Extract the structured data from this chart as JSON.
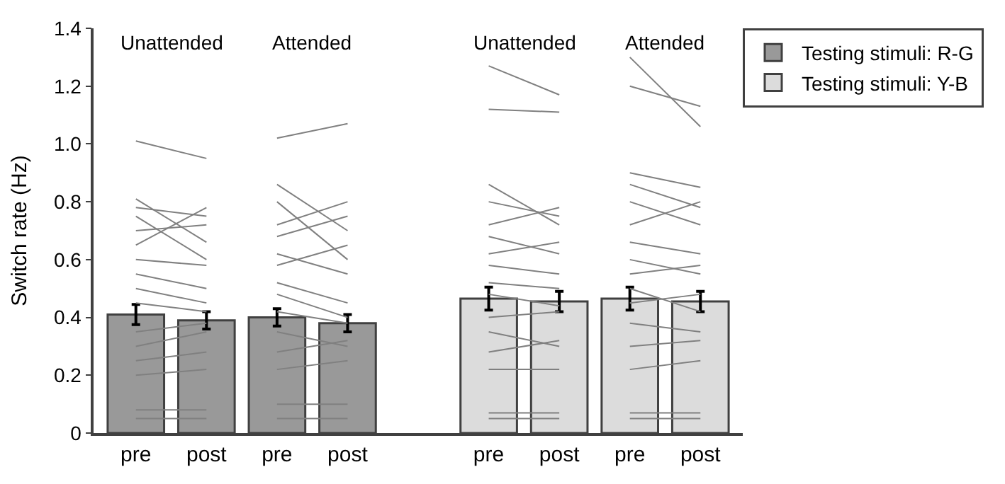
{
  "chart_data": {
    "type": "bar",
    "ylabel": "Switch rate (Hz)",
    "categories": [
      "pre",
      "post",
      "pre",
      "post",
      null,
      "pre",
      "post",
      "pre",
      "post"
    ],
    "ylim": [
      0,
      1.4
    ],
    "yticks": [
      0,
      0.2,
      0.4,
      0.6,
      0.8,
      {
        "value": 1.0,
        "label": "1.0"
      },
      1.2,
      1.4
    ],
    "legend": "top right",
    "annotations": [
      "Unattended",
      "Attended",
      "Unattended",
      "Attended"
    ],
    "series": [
      {
        "name": "Testing stimuli: R-G",
        "color": "#999999",
        "values": [
          0.41,
          0.39,
          0.4,
          0.38,
          null,
          null,
          null,
          null,
          null
        ],
        "errors": [
          0.035,
          0.03,
          0.03,
          0.03,
          null,
          null,
          null,
          null,
          null
        ]
      },
      {
        "name": "Testing stimuli: Y-B",
        "color": "#dcdcdc",
        "values": [
          null,
          null,
          null,
          null,
          null,
          0.465,
          0.455,
          0.465,
          0.455
        ],
        "errors": [
          null,
          null,
          null,
          null,
          null,
          0.04,
          0.035,
          0.04,
          0.035
        ]
      },
      {
        "type": "line",
        "color": "#808080",
        "values": [
          1.01,
          0.95,
          null,
          null,
          null,
          null,
          null,
          null,
          null
        ]
      },
      {
        "type": "line",
        "color": "#808080",
        "values": [
          0.81,
          0.66,
          null,
          null,
          null,
          null,
          null,
          null,
          null
        ]
      },
      {
        "type": "line",
        "color": "#808080",
        "values": [
          0.78,
          0.75,
          null,
          null,
          null,
          null,
          null,
          null,
          null
        ]
      },
      {
        "type": "line",
        "color": "#808080",
        "values": [
          0.75,
          0.6,
          null,
          null,
          null,
          null,
          null,
          null,
          null
        ]
      },
      {
        "type": "line",
        "color": "#808080",
        "values": [
          0.7,
          0.72,
          null,
          null,
          null,
          null,
          null,
          null,
          null
        ]
      },
      {
        "type": "line",
        "color": "#808080",
        "values": [
          0.65,
          0.78,
          null,
          null,
          null,
          null,
          null,
          null,
          null
        ]
      },
      {
        "type": "line",
        "color": "#808080",
        "values": [
          0.6,
          0.58,
          null,
          null,
          null,
          null,
          null,
          null,
          null
        ]
      },
      {
        "type": "line",
        "color": "#808080",
        "values": [
          0.55,
          0.5,
          null,
          null,
          null,
          null,
          null,
          null,
          null
        ]
      },
      {
        "type": "line",
        "color": "#808080",
        "values": [
          0.5,
          0.45,
          null,
          null,
          null,
          null,
          null,
          null,
          null
        ]
      },
      {
        "type": "line",
        "color": "#808080",
        "values": [
          0.45,
          0.42,
          null,
          null,
          null,
          null,
          null,
          null,
          null
        ]
      },
      {
        "type": "line",
        "color": "#808080",
        "values": [
          0.35,
          0.38,
          null,
          null,
          null,
          null,
          null,
          null,
          null
        ]
      },
      {
        "type": "line",
        "color": "#808080",
        "values": [
          0.3,
          0.35,
          null,
          null,
          null,
          null,
          null,
          null,
          null
        ]
      },
      {
        "type": "line",
        "color": "#808080",
        "values": [
          0.25,
          0.28,
          null,
          null,
          null,
          null,
          null,
          null,
          null
        ]
      },
      {
        "type": "line",
        "color": "#808080",
        "values": [
          0.2,
          0.22,
          null,
          null,
          null,
          null,
          null,
          null,
          null
        ]
      },
      {
        "type": "line",
        "color": "#808080",
        "values": [
          0.08,
          0.08,
          null,
          null,
          null,
          null,
          null,
          null,
          null
        ]
      },
      {
        "type": "line",
        "color": "#808080",
        "values": [
          0.05,
          0.05,
          null,
          null,
          null,
          null,
          null,
          null,
          null
        ]
      },
      {
        "type": "line",
        "color": "#808080",
        "values": [
          null,
          null,
          1.02,
          1.07,
          null,
          null,
          null,
          null,
          null
        ]
      },
      {
        "type": "line",
        "color": "#808080",
        "values": [
          null,
          null,
          0.86,
          0.7,
          null,
          null,
          null,
          null,
          null
        ]
      },
      {
        "type": "line",
        "color": "#808080",
        "values": [
          null,
          null,
          0.8,
          0.6,
          null,
          null,
          null,
          null,
          null
        ]
      },
      {
        "type": "line",
        "color": "#808080",
        "values": [
          null,
          null,
          0.72,
          0.8,
          null,
          null,
          null,
          null,
          null
        ]
      },
      {
        "type": "line",
        "color": "#808080",
        "values": [
          null,
          null,
          0.68,
          0.75,
          null,
          null,
          null,
          null,
          null
        ]
      },
      {
        "type": "line",
        "color": "#808080",
        "values": [
          null,
          null,
          0.62,
          0.55,
          null,
          null,
          null,
          null,
          null
        ]
      },
      {
        "type": "line",
        "color": "#808080",
        "values": [
          null,
          null,
          0.58,
          0.65,
          null,
          null,
          null,
          null,
          null
        ]
      },
      {
        "type": "line",
        "color": "#808080",
        "values": [
          null,
          null,
          0.52,
          0.45,
          null,
          null,
          null,
          null,
          null
        ]
      },
      {
        "type": "line",
        "color": "#808080",
        "values": [
          null,
          null,
          0.48,
          0.4,
          null,
          null,
          null,
          null,
          null
        ]
      },
      {
        "type": "line",
        "color": "#808080",
        "values": [
          null,
          null,
          0.42,
          0.38,
          null,
          null,
          null,
          null,
          null
        ]
      },
      {
        "type": "line",
        "color": "#808080",
        "values": [
          null,
          null,
          0.35,
          0.3,
          null,
          null,
          null,
          null,
          null
        ]
      },
      {
        "type": "line",
        "color": "#808080",
        "values": [
          null,
          null,
          0.28,
          0.32,
          null,
          null,
          null,
          null,
          null
        ]
      },
      {
        "type": "line",
        "color": "#808080",
        "values": [
          null,
          null,
          0.22,
          0.25,
          null,
          null,
          null,
          null,
          null
        ]
      },
      {
        "type": "line",
        "color": "#808080",
        "values": [
          null,
          null,
          0.1,
          0.1,
          null,
          null,
          null,
          null,
          null
        ]
      },
      {
        "type": "line",
        "color": "#808080",
        "values": [
          null,
          null,
          0.05,
          0.05,
          null,
          null,
          null,
          null,
          null
        ]
      },
      {
        "type": "line",
        "color": "#808080",
        "values": [
          null,
          null,
          null,
          null,
          null,
          1.27,
          1.17,
          null,
          null
        ]
      },
      {
        "type": "line",
        "color": "#808080",
        "values": [
          null,
          null,
          null,
          null,
          null,
          1.12,
          1.11,
          null,
          null
        ]
      },
      {
        "type": "line",
        "color": "#808080",
        "values": [
          null,
          null,
          null,
          null,
          null,
          0.86,
          0.72,
          null,
          null
        ]
      },
      {
        "type": "line",
        "color": "#808080",
        "values": [
          null,
          null,
          null,
          null,
          null,
          0.8,
          0.75,
          null,
          null
        ]
      },
      {
        "type": "line",
        "color": "#808080",
        "values": [
          null,
          null,
          null,
          null,
          null,
          0.72,
          0.78,
          null,
          null
        ]
      },
      {
        "type": "line",
        "color": "#808080",
        "values": [
          null,
          null,
          null,
          null,
          null,
          0.68,
          0.62,
          null,
          null
        ]
      },
      {
        "type": "line",
        "color": "#808080",
        "values": [
          null,
          null,
          null,
          null,
          null,
          0.62,
          0.66,
          null,
          null
        ]
      },
      {
        "type": "line",
        "color": "#808080",
        "values": [
          null,
          null,
          null,
          null,
          null,
          0.58,
          0.55,
          null,
          null
        ]
      },
      {
        "type": "line",
        "color": "#808080",
        "values": [
          null,
          null,
          null,
          null,
          null,
          0.52,
          0.5,
          null,
          null
        ]
      },
      {
        "type": "line",
        "color": "#808080",
        "values": [
          null,
          null,
          null,
          null,
          null,
          0.48,
          0.44,
          null,
          null
        ]
      },
      {
        "type": "line",
        "color": "#808080",
        "values": [
          null,
          null,
          null,
          null,
          null,
          0.4,
          0.42,
          null,
          null
        ]
      },
      {
        "type": "line",
        "color": "#808080",
        "values": [
          null,
          null,
          null,
          null,
          null,
          0.35,
          0.3,
          null,
          null
        ]
      },
      {
        "type": "line",
        "color": "#808080",
        "values": [
          null,
          null,
          null,
          null,
          null,
          0.28,
          0.32,
          null,
          null
        ]
      },
      {
        "type": "line",
        "color": "#808080",
        "values": [
          null,
          null,
          null,
          null,
          null,
          0.22,
          0.22,
          null,
          null
        ]
      },
      {
        "type": "line",
        "color": "#808080",
        "values": [
          null,
          null,
          null,
          null,
          null,
          0.07,
          0.07,
          null,
          null
        ]
      },
      {
        "type": "line",
        "color": "#808080",
        "values": [
          null,
          null,
          null,
          null,
          null,
          0.05,
          0.05,
          null,
          null
        ]
      },
      {
        "type": "line",
        "color": "#808080",
        "values": [
          null,
          null,
          null,
          null,
          null,
          null,
          null,
          1.3,
          1.06
        ]
      },
      {
        "type": "line",
        "color": "#808080",
        "values": [
          null,
          null,
          null,
          null,
          null,
          null,
          null,
          1.2,
          1.13
        ]
      },
      {
        "type": "line",
        "color": "#808080",
        "values": [
          null,
          null,
          null,
          null,
          null,
          null,
          null,
          0.9,
          0.85
        ]
      },
      {
        "type": "line",
        "color": "#808080",
        "values": [
          null,
          null,
          null,
          null,
          null,
          null,
          null,
          0.86,
          0.78
        ]
      },
      {
        "type": "line",
        "color": "#808080",
        "values": [
          null,
          null,
          null,
          null,
          null,
          null,
          null,
          0.8,
          0.72
        ]
      },
      {
        "type": "line",
        "color": "#808080",
        "values": [
          null,
          null,
          null,
          null,
          null,
          null,
          null,
          0.72,
          0.8
        ]
      },
      {
        "type": "line",
        "color": "#808080",
        "values": [
          null,
          null,
          null,
          null,
          null,
          null,
          null,
          0.66,
          0.62
        ]
      },
      {
        "type": "line",
        "color": "#808080",
        "values": [
          null,
          null,
          null,
          null,
          null,
          null,
          null,
          0.6,
          0.55
        ]
      },
      {
        "type": "line",
        "color": "#808080",
        "values": [
          null,
          null,
          null,
          null,
          null,
          null,
          null,
          0.55,
          0.58
        ]
      },
      {
        "type": "line",
        "color": "#808080",
        "values": [
          null,
          null,
          null,
          null,
          null,
          null,
          null,
          0.5,
          0.42
        ]
      },
      {
        "type": "line",
        "color": "#808080",
        "values": [
          null,
          null,
          null,
          null,
          null,
          null,
          null,
          0.45,
          0.48
        ]
      },
      {
        "type": "line",
        "color": "#808080",
        "values": [
          null,
          null,
          null,
          null,
          null,
          null,
          null,
          0.38,
          0.35
        ]
      },
      {
        "type": "line",
        "color": "#808080",
        "values": [
          null,
          null,
          null,
          null,
          null,
          null,
          null,
          0.3,
          0.32
        ]
      },
      {
        "type": "line",
        "color": "#808080",
        "values": [
          null,
          null,
          null,
          null,
          null,
          null,
          null,
          0.22,
          0.25
        ]
      },
      {
        "type": "line",
        "color": "#808080",
        "values": [
          null,
          null,
          null,
          null,
          null,
          null,
          null,
          0.07,
          0.07
        ]
      },
      {
        "type": "line",
        "color": "#808080",
        "values": [
          null,
          null,
          null,
          null,
          null,
          null,
          null,
          0.05,
          0.05
        ]
      }
    ]
  }
}
